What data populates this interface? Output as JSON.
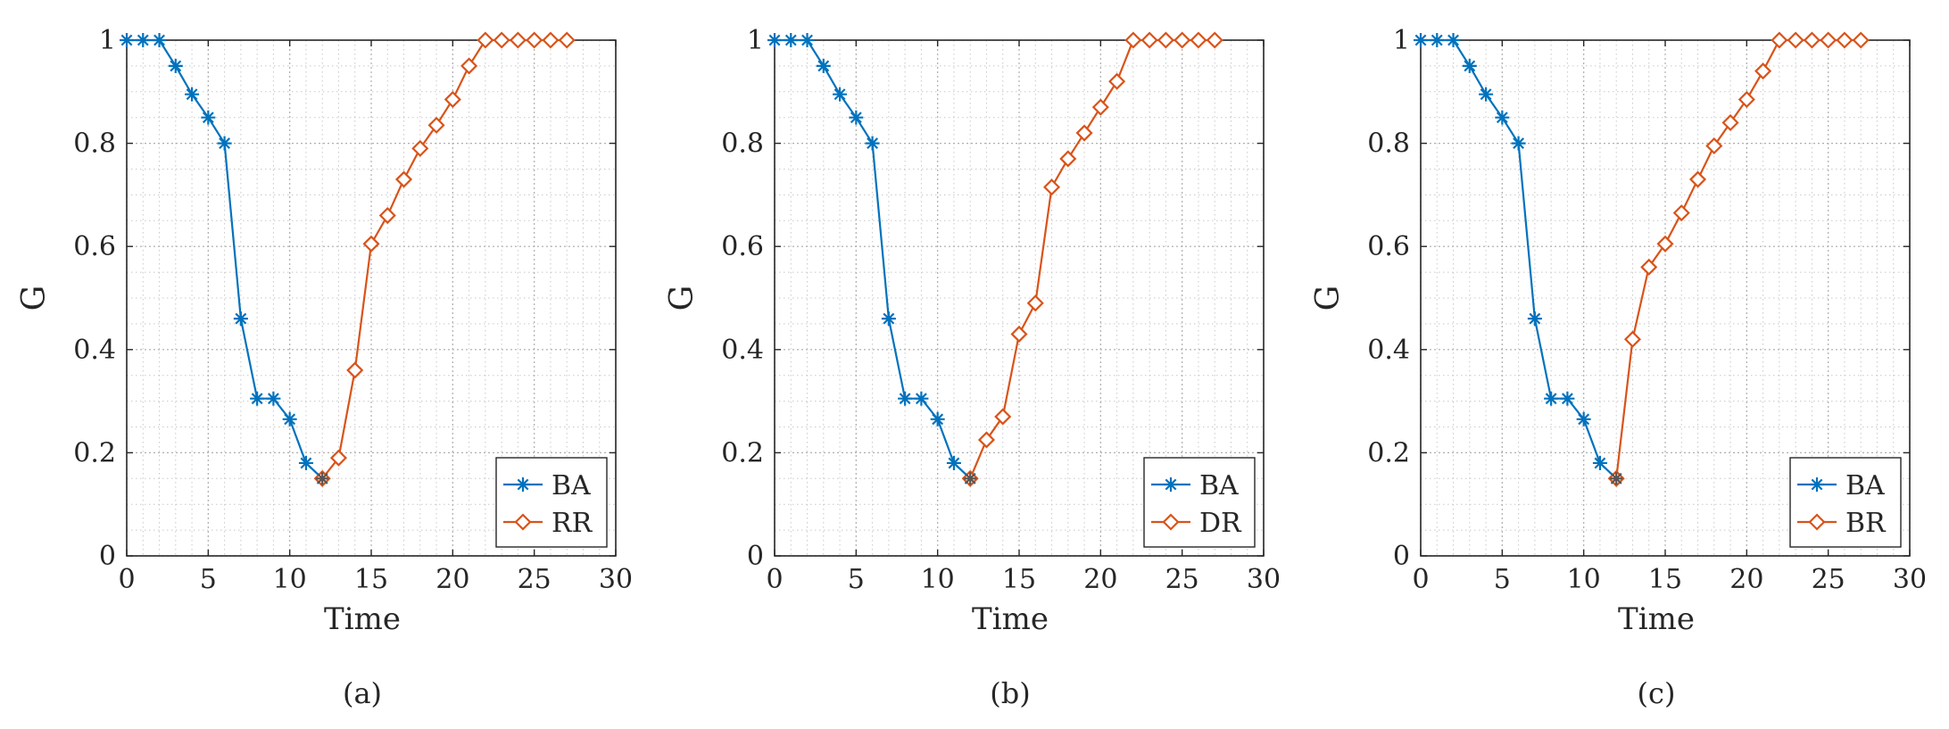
{
  "colors": {
    "ba": "#0072BD",
    "recovery": "#D95319",
    "grid": "#c8c8c8",
    "axis": "#262626"
  },
  "chart_data": [
    {
      "type": "line",
      "caption": "(a)",
      "xlabel": "Time",
      "ylabel": "G",
      "xlim": [
        0,
        30
      ],
      "ylim": [
        0,
        1
      ],
      "xticks": [
        "0",
        "5",
        "10",
        "15",
        "20",
        "25",
        "30"
      ],
      "yticks": [
        "0",
        "0.2",
        "0.4",
        "0.6",
        "0.8",
        "1"
      ],
      "grid": true,
      "legend_position": "bottom-right",
      "series": [
        {
          "name": "BA",
          "marker": "asterisk",
          "color": "#0072BD",
          "x": [
            0,
            1,
            2,
            3,
            4,
            5,
            6,
            7,
            8,
            9,
            10,
            11,
            12
          ],
          "y": [
            1,
            1,
            1,
            0.95,
            0.895,
            0.85,
            0.8,
            0.46,
            0.305,
            0.305,
            0.265,
            0.18,
            0.15
          ]
        },
        {
          "name": "RR",
          "marker": "diamond",
          "color": "#D95319",
          "x": [
            12,
            13,
            14,
            15,
            16,
            17,
            18,
            19,
            20,
            21,
            22,
            23,
            24,
            25,
            26,
            27
          ],
          "y": [
            0.15,
            0.19,
            0.36,
            0.605,
            0.66,
            0.73,
            0.79,
            0.835,
            0.885,
            0.95,
            1,
            1,
            1,
            1,
            1,
            1
          ]
        }
      ]
    },
    {
      "type": "line",
      "caption": "(b)",
      "xlabel": "Time",
      "ylabel": "G",
      "xlim": [
        0,
        30
      ],
      "ylim": [
        0,
        1
      ],
      "xticks": [
        "0",
        "5",
        "10",
        "15",
        "20",
        "25",
        "30"
      ],
      "yticks": [
        "0",
        "0.2",
        "0.4",
        "0.6",
        "0.8",
        "1"
      ],
      "grid": true,
      "legend_position": "bottom-right",
      "series": [
        {
          "name": "BA",
          "marker": "asterisk",
          "color": "#0072BD",
          "x": [
            0,
            1,
            2,
            3,
            4,
            5,
            6,
            7,
            8,
            9,
            10,
            11,
            12
          ],
          "y": [
            1,
            1,
            1,
            0.95,
            0.895,
            0.85,
            0.8,
            0.46,
            0.305,
            0.305,
            0.265,
            0.18,
            0.15
          ]
        },
        {
          "name": "DR",
          "marker": "diamond",
          "color": "#D95319",
          "x": [
            12,
            13,
            14,
            15,
            16,
            17,
            18,
            19,
            20,
            21,
            22,
            23,
            24,
            25,
            26,
            27
          ],
          "y": [
            0.15,
            0.225,
            0.27,
            0.43,
            0.49,
            0.715,
            0.77,
            0.82,
            0.87,
            0.92,
            1,
            1,
            1,
            1,
            1,
            1
          ]
        }
      ]
    },
    {
      "type": "line",
      "caption": "(c)",
      "xlabel": "Time",
      "ylabel": "G",
      "xlim": [
        0,
        30
      ],
      "ylim": [
        0,
        1
      ],
      "xticks": [
        "0",
        "5",
        "10",
        "15",
        "20",
        "25",
        "30"
      ],
      "yticks": [
        "0",
        "0.2",
        "0.4",
        "0.6",
        "0.8",
        "1"
      ],
      "grid": true,
      "legend_position": "bottom-right",
      "series": [
        {
          "name": "BA",
          "marker": "asterisk",
          "color": "#0072BD",
          "x": [
            0,
            1,
            2,
            3,
            4,
            5,
            6,
            7,
            8,
            9,
            10,
            11,
            12
          ],
          "y": [
            1,
            1,
            1,
            0.95,
            0.895,
            0.85,
            0.8,
            0.46,
            0.305,
            0.305,
            0.265,
            0.18,
            0.15
          ]
        },
        {
          "name": "BR",
          "marker": "diamond",
          "color": "#D95319",
          "x": [
            12,
            13,
            14,
            15,
            16,
            17,
            18,
            19,
            20,
            21,
            22,
            23,
            24,
            25,
            26,
            27
          ],
          "y": [
            0.15,
            0.42,
            0.56,
            0.605,
            0.665,
            0.73,
            0.795,
            0.84,
            0.885,
            0.94,
            1,
            1,
            1,
            1,
            1,
            1
          ]
        }
      ]
    }
  ]
}
